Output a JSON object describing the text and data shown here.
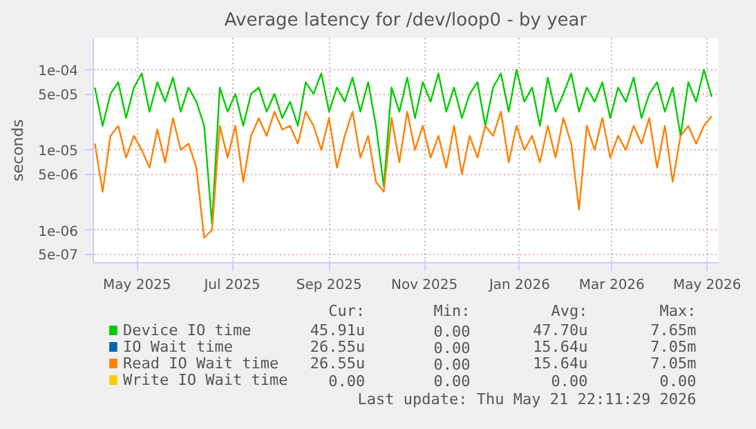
{
  "chart_data": {
    "type": "line",
    "title": "Average latency for /dev/loop0 - by year",
    "ylabel": "seconds",
    "x": [
      "2025-04-18",
      "2025-04-23",
      "2025-04-28",
      "2025-05-03",
      "2025-05-08",
      "2025-05-13",
      "2025-05-18",
      "2025-05-23",
      "2025-05-28",
      "2025-06-02",
      "2025-06-07",
      "2025-06-12",
      "2025-06-17",
      "2025-06-22",
      "2025-06-27",
      "2025-07-02",
      "2025-07-07",
      "2025-07-12",
      "2025-07-17",
      "2025-07-22",
      "2025-07-27",
      "2025-08-01",
      "2025-08-06",
      "2025-08-11",
      "2025-08-16",
      "2025-08-21",
      "2025-08-26",
      "2025-08-31",
      "2025-09-05",
      "2025-09-10",
      "2025-09-15",
      "2025-09-20",
      "2025-09-25",
      "2025-09-30",
      "2025-10-05",
      "2025-10-10",
      "2025-10-15",
      "2025-10-20",
      "2025-10-25",
      "2025-10-30",
      "2025-11-04",
      "2025-11-09",
      "2025-11-14",
      "2025-11-19",
      "2025-11-24",
      "2025-11-29",
      "2025-12-04",
      "2025-12-09",
      "2025-12-14",
      "2025-12-19",
      "2025-12-24",
      "2025-12-29",
      "2026-01-03",
      "2026-01-08",
      "2026-01-13",
      "2026-01-18",
      "2026-01-23",
      "2026-01-28",
      "2026-02-02",
      "2026-02-07",
      "2026-02-12",
      "2026-02-17",
      "2026-02-22",
      "2026-02-27",
      "2026-03-04",
      "2026-03-09",
      "2026-03-14",
      "2026-03-19",
      "2026-03-24",
      "2026-03-29",
      "2026-04-03",
      "2026-04-08",
      "2026-04-13",
      "2026-04-18",
      "2026-04-23",
      "2026-04-28",
      "2026-05-03",
      "2026-05-08",
      "2026-05-13",
      "2026-05-18"
    ],
    "series": [
      {
        "name": "Device IO time",
        "color": "#00cc00",
        "values": [
          6e-05,
          2e-05,
          5e-05,
          7e-05,
          2.5e-05,
          6e-05,
          9e-05,
          3e-05,
          7e-05,
          4e-05,
          8e-05,
          3e-05,
          6e-05,
          4e-05,
          2e-05,
          1.2e-06,
          6e-05,
          3e-05,
          5e-05,
          2e-05,
          5e-05,
          6e-05,
          3e-05,
          5e-05,
          2.5e-05,
          4e-05,
          2e-05,
          7e-05,
          5e-05,
          9e-05,
          3e-05,
          6e-05,
          4e-05,
          8e-05,
          3e-05,
          7e-05,
          2e-05,
          3.5e-06,
          6e-05,
          3e-05,
          8e-05,
          2.5e-05,
          7e-05,
          4e-05,
          9e-05,
          3e-05,
          6e-05,
          2.5e-05,
          5e-05,
          7e-05,
          2e-05,
          6e-05,
          9e-05,
          3e-05,
          0.0001,
          4e-05,
          6e-05,
          2e-05,
          8e-05,
          3e-05,
          5e-05,
          9e-05,
          3e-05,
          6e-05,
          4e-05,
          7e-05,
          2.5e-05,
          6e-05,
          4e-05,
          8e-05,
          2.5e-05,
          5e-05,
          7e-05,
          3e-05,
          6e-05,
          1.5e-05,
          7e-05,
          4e-05,
          0.0001,
          4.6e-05
        ]
      },
      {
        "name": "IO Wait time",
        "color": "#0066b3",
        "values": [
          null,
          null,
          null,
          null,
          null,
          null,
          null,
          null,
          null,
          null,
          null,
          null,
          null,
          null,
          null,
          null,
          null,
          null,
          null,
          null,
          null,
          null,
          null,
          null,
          null,
          null,
          null,
          null,
          null,
          null,
          null,
          null,
          null,
          null,
          null,
          null,
          null,
          null,
          null,
          null,
          null,
          null,
          null,
          null,
          null,
          null,
          null,
          null,
          null,
          null,
          null,
          null,
          null,
          null,
          null,
          null,
          null,
          null,
          null,
          null,
          null,
          null,
          null,
          null,
          null,
          null,
          null,
          null,
          null,
          null,
          null,
          null,
          null,
          null,
          null,
          null,
          null,
          null,
          null,
          null
        ]
      },
      {
        "name": "Read IO Wait time",
        "color": "#ff8000",
        "values": [
          1.2e-05,
          3e-06,
          1.5e-05,
          2e-05,
          8e-06,
          1.5e-05,
          1e-05,
          6e-06,
          1.8e-05,
          7e-06,
          2.5e-05,
          1e-05,
          1.2e-05,
          6e-06,
          8e-07,
          1e-06,
          2e-05,
          8e-06,
          2e-05,
          4e-06,
          1.5e-05,
          2.5e-05,
          1.5e-05,
          3e-05,
          1.8e-05,
          2e-05,
          1.2e-05,
          3e-05,
          2e-05,
          1e-05,
          2.5e-05,
          6e-06,
          1.5e-05,
          3e-05,
          8e-06,
          1.5e-05,
          4e-06,
          3e-06,
          2.5e-05,
          7e-06,
          3e-05,
          1e-05,
          2e-05,
          8e-06,
          1.5e-05,
          6e-06,
          2e-05,
          5e-06,
          1.5e-05,
          8e-06,
          2e-05,
          1.5e-05,
          3e-05,
          7e-06,
          2e-05,
          1e-05,
          1.5e-05,
          7e-06,
          2e-05,
          8e-06,
          2.5e-05,
          1.2e-05,
          1.8e-06,
          2e-05,
          1e-05,
          2.5e-05,
          8e-06,
          1.5e-05,
          1e-05,
          2e-05,
          1.2e-05,
          2.5e-05,
          6e-06,
          2e-05,
          4e-06,
          1.5e-05,
          2e-05,
          1.2e-05,
          2e-05,
          2.65e-05
        ]
      },
      {
        "name": "Write IO Wait time",
        "color": "#ffcc00",
        "values": [
          null,
          null,
          null,
          null,
          null,
          null,
          null,
          null,
          null,
          null,
          null,
          null,
          null,
          null,
          null,
          null,
          null,
          null,
          null,
          null,
          null,
          null,
          null,
          null,
          null,
          null,
          null,
          null,
          null,
          null,
          null,
          null,
          null,
          null,
          null,
          null,
          null,
          null,
          null,
          null,
          null,
          null,
          null,
          null,
          null,
          null,
          null,
          null,
          null,
          null,
          null,
          null,
          null,
          null,
          null,
          null,
          null,
          null,
          null,
          null,
          null,
          null,
          null,
          null,
          null,
          null,
          null,
          null,
          null,
          null,
          null,
          null,
          null,
          null,
          null,
          null,
          null,
          null,
          null,
          null
        ]
      }
    ],
    "log": "y",
    "xlim": [
      "2025-04-17",
      "2026-05-22"
    ],
    "ylim": [
      3.9e-07,
      0.00025
    ],
    "xticks": [
      {
        "value": "2025-05-15",
        "label": "May 2025"
      },
      {
        "value": "2025-07-15",
        "label": "Jul 2025"
      },
      {
        "value": "2025-09-15",
        "label": "Sep 2025"
      },
      {
        "value": "2025-11-15",
        "label": "Nov 2025"
      },
      {
        "value": "2026-01-15",
        "label": "Jan 2026"
      },
      {
        "value": "2026-03-15",
        "label": "Mar 2026"
      },
      {
        "value": "2026-05-15",
        "label": "May 2026"
      }
    ],
    "yticks": [
      {
        "value": 5e-07,
        "label": "5e-07"
      },
      {
        "value": 1e-06,
        "label": "1e-06"
      },
      {
        "value": 5e-06,
        "label": "5e-06"
      },
      {
        "value": 1e-05,
        "label": "1e-05"
      },
      {
        "value": 5e-05,
        "label": "5e-05"
      },
      {
        "value": 0.0001,
        "label": "1e-04"
      }
    ],
    "grid": true,
    "legend": "bottom",
    "line_style": "solid",
    "marker": "none",
    "annotations": [
      "Cur:",
      "Min:",
      "Avg:",
      "Max:",
      "45.91u",
      "0.00",
      "47.70u",
      "7.65m",
      "26.55u",
      "0.00",
      "15.64u",
      "7.05m",
      "26.55u",
      "0.00",
      "15.64u",
      "7.05m",
      "0.00",
      "0.00",
      "0.00",
      "0.00",
      "Last update: Thu May 21 22:11:29 2026"
    ]
  }
}
